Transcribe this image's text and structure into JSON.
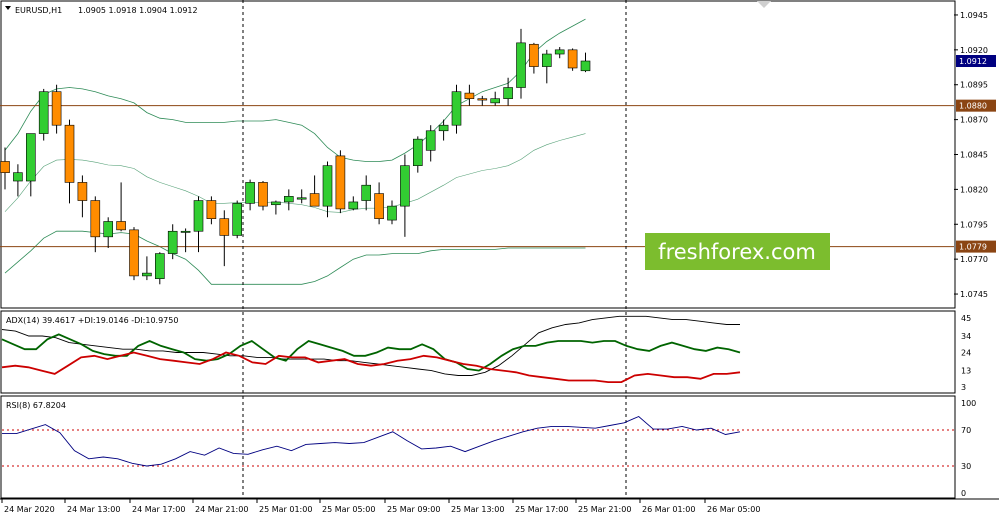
{
  "header": {
    "symbol": "EURUSD,H1",
    "ohlc": "1.0905 1.0918 1.0904 1.0912"
  },
  "watermark": "freshforex.com",
  "colors": {
    "bull": "#32cd32",
    "bear": "#ff8c00",
    "candle_outline": "#000000",
    "bands": "#2e8b57",
    "level_line": "#8b4513",
    "price_tag": "#000080",
    "adx": "#000000",
    "plus_di": "#006400",
    "minus_di": "#cc0000",
    "rsi": "#000080",
    "rsi_levels": "#cc0000",
    "watermark_bg": "#7cbd2e"
  },
  "chart_data": [
    {
      "type": "candlestick",
      "title": "EURUSD,H1",
      "ylim": [
        1.0735,
        1.0955
      ],
      "yticks": [
        "1.0945",
        "1.0920",
        "1.0895",
        "1.0870",
        "1.0845",
        "1.0820",
        "1.0795",
        "1.0770",
        "1.0745"
      ],
      "x_labels": [
        "24 Mar 2020",
        "24 Mar 13:00",
        "24 Mar 17:00",
        "24 Mar 21:00",
        "25 Mar 01:00",
        "25 Mar 05:00",
        "25 Mar 09:00",
        "25 Mar 13:00",
        "25 Mar 17:00",
        "25 Mar 21:00",
        "26 Mar 01:00",
        "26 Mar 05:00"
      ],
      "candles": [
        {
          "o": 1.084,
          "h": 1.085,
          "l": 1.082,
          "c": 1.0832
        },
        {
          "o": 1.0826,
          "h": 1.0838,
          "l": 1.0815,
          "c": 1.0832
        },
        {
          "o": 1.0826,
          "h": 1.086,
          "l": 1.0815,
          "c": 1.086
        },
        {
          "o": 1.086,
          "h": 1.0892,
          "l": 1.0855,
          "c": 1.089
        },
        {
          "o": 1.089,
          "h": 1.0895,
          "l": 1.086,
          "c": 1.0866
        },
        {
          "o": 1.0866,
          "h": 1.087,
          "l": 1.081,
          "c": 1.0825
        },
        {
          "o": 1.0825,
          "h": 1.083,
          "l": 1.08,
          "c": 1.0812
        },
        {
          "o": 1.0812,
          "h": 1.0815,
          "l": 1.0775,
          "c": 1.0786
        },
        {
          "o": 1.0786,
          "h": 1.08,
          "l": 1.0778,
          "c": 1.0797
        },
        {
          "o": 1.0797,
          "h": 1.0825,
          "l": 1.079,
          "c": 1.0791
        },
        {
          "o": 1.0791,
          "h": 1.0793,
          "l": 1.0755,
          "c": 1.0758
        },
        {
          "o": 1.0758,
          "h": 1.0772,
          "l": 1.0755,
          "c": 1.076
        },
        {
          "o": 1.0756,
          "h": 1.0775,
          "l": 1.0752,
          "c": 1.0774
        },
        {
          "o": 1.0774,
          "h": 1.0795,
          "l": 1.077,
          "c": 1.079
        },
        {
          "o": 1.079,
          "h": 1.0792,
          "l": 1.0775,
          "c": 1.079
        },
        {
          "o": 1.079,
          "h": 1.0815,
          "l": 1.0775,
          "c": 1.0812
        },
        {
          "o": 1.0812,
          "h": 1.0815,
          "l": 1.0795,
          "c": 1.0799
        },
        {
          "o": 1.0799,
          "h": 1.0805,
          "l": 1.0765,
          "c": 1.0787
        },
        {
          "o": 1.0787,
          "h": 1.0812,
          "l": 1.0785,
          "c": 1.081
        },
        {
          "o": 1.081,
          "h": 1.0827,
          "l": 1.0805,
          "c": 1.0825
        },
        {
          "o": 1.0825,
          "h": 1.0826,
          "l": 1.0805,
          "c": 1.0808
        },
        {
          "o": 1.0809,
          "h": 1.0812,
          "l": 1.0802,
          "c": 1.0811
        },
        {
          "o": 1.0811,
          "h": 1.082,
          "l": 1.0805,
          "c": 1.0815
        },
        {
          "o": 1.0813,
          "h": 1.082,
          "l": 1.081,
          "c": 1.0814
        },
        {
          "o": 1.0817,
          "h": 1.083,
          "l": 1.0808,
          "c": 1.0808
        },
        {
          "o": 1.0808,
          "h": 1.084,
          "l": 1.08,
          "c": 1.0837
        },
        {
          "o": 1.0844,
          "h": 1.0848,
          "l": 1.0803,
          "c": 1.0806
        },
        {
          "o": 1.0806,
          "h": 1.0815,
          "l": 1.0805,
          "c": 1.0811
        },
        {
          "o": 1.0812,
          "h": 1.083,
          "l": 1.0805,
          "c": 1.0823
        },
        {
          "o": 1.0817,
          "h": 1.0825,
          "l": 1.0795,
          "c": 1.0799
        },
        {
          "o": 1.0798,
          "h": 1.0812,
          "l": 1.0795,
          "c": 1.0808
        },
        {
          "o": 1.0808,
          "h": 1.0845,
          "l": 1.0786,
          "c": 1.0837
        },
        {
          "o": 1.0837,
          "h": 1.0858,
          "l": 1.0832,
          "c": 1.0856
        },
        {
          "o": 1.0848,
          "h": 1.0866,
          "l": 1.084,
          "c": 1.0862
        },
        {
          "o": 1.0862,
          "h": 1.087,
          "l": 1.0855,
          "c": 1.0866
        },
        {
          "o": 1.0866,
          "h": 1.0895,
          "l": 1.086,
          "c": 1.089
        },
        {
          "o": 1.0889,
          "h": 1.0895,
          "l": 1.088,
          "c": 1.0885
        },
        {
          "o": 1.0885,
          "h": 1.0887,
          "l": 1.088,
          "c": 1.0884
        },
        {
          "o": 1.0882,
          "h": 1.089,
          "l": 1.088,
          "c": 1.0885
        },
        {
          "o": 1.0885,
          "h": 1.09,
          "l": 1.088,
          "c": 1.0893
        },
        {
          "o": 1.0893,
          "h": 1.0935,
          "l": 1.0885,
          "c": 1.0925
        },
        {
          "o": 1.0924,
          "h": 1.0925,
          "l": 1.0903,
          "c": 1.0908
        },
        {
          "o": 1.0908,
          "h": 1.092,
          "l": 1.0896,
          "c": 1.0917
        },
        {
          "o": 1.0917,
          "h": 1.0922,
          "l": 1.0914,
          "c": 1.092
        },
        {
          "o": 1.092,
          "h": 1.0921,
          "l": 1.0905,
          "c": 1.0907
        },
        {
          "o": 1.0905,
          "h": 1.0918,
          "l": 1.0904,
          "c": 1.0912
        }
      ],
      "bands": {
        "upper": [
          1.0848,
          1.086,
          1.0876,
          1.0888,
          1.0892,
          1.0893,
          1.0892,
          1.089,
          1.0887,
          1.0885,
          1.0882,
          1.0875,
          1.0871,
          1.087,
          1.0868,
          1.0868,
          1.0868,
          1.0868,
          1.0869,
          1.0869,
          1.0869,
          1.087,
          1.0868,
          1.0866,
          1.086,
          1.085,
          1.0843,
          1.0841,
          1.084,
          1.084,
          1.0841,
          1.0846,
          1.0852,
          1.086,
          1.0869,
          1.088,
          1.0885,
          1.089,
          1.0893,
          1.0896,
          1.0905,
          1.0918,
          1.0926,
          1.0932,
          1.0937,
          1.0942
        ],
        "lower": [
          1.076,
          1.0768,
          1.0776,
          1.0785,
          1.079,
          1.079,
          1.079,
          1.0789,
          1.0788,
          1.0789,
          1.0788,
          1.0783,
          1.0779,
          1.0774,
          1.077,
          1.0762,
          1.0752,
          1.0752,
          1.0752,
          1.0752,
          1.0752,
          1.0752,
          1.0752,
          1.0752,
          1.0754,
          1.0758,
          1.0764,
          1.077,
          1.0773,
          1.0773,
          1.0774,
          1.0774,
          1.0774,
          1.0776,
          1.0777,
          1.0777,
          1.0777,
          1.0777,
          1.0777,
          1.0778,
          1.0778,
          1.0778,
          1.0778,
          1.0778,
          1.0778,
          1.0778
        ]
      },
      "levels": [
        {
          "value": 1.088,
          "label": "1.0880"
        },
        {
          "value": 1.0779,
          "label": "1.0779"
        }
      ],
      "current_price": {
        "value": 1.0912,
        "label": "1.0912"
      },
      "vertical_separators": [
        "24 Mar 21:00",
        "26 Mar 00:00"
      ]
    },
    {
      "type": "line",
      "title": "ADX(14) 39.4617 +DI:19.0146 -DI:10.9750",
      "ylim": [
        0,
        48
      ],
      "yticks": [
        "45",
        "34",
        "24",
        "13",
        "3"
      ],
      "series": [
        {
          "name": "ADX",
          "values": [
            38,
            37,
            34,
            34,
            33,
            30,
            29,
            28,
            27,
            26,
            26,
            25,
            25,
            24,
            24,
            24,
            23,
            22,
            22,
            21,
            21,
            20,
            20,
            20,
            20,
            19,
            19,
            18,
            17,
            16,
            15,
            14,
            13,
            11,
            10,
            10,
            12,
            16,
            22,
            29,
            36,
            39,
            41,
            42,
            44,
            45,
            46,
            46,
            46,
            45,
            44,
            44,
            43,
            42,
            41,
            41
          ]
        },
        {
          "name": "+DI",
          "values": [
            32,
            29,
            26,
            26,
            32,
            35,
            32,
            29,
            25,
            23,
            22,
            22,
            28,
            31,
            28,
            26,
            24,
            20,
            19,
            20,
            23,
            28,
            31,
            26,
            21,
            19,
            26,
            31,
            29,
            27,
            25,
            22,
            22,
            24,
            27,
            26,
            26,
            29,
            26,
            20,
            18,
            14,
            13,
            17,
            22,
            26,
            28,
            28,
            30,
            31,
            31,
            31,
            30,
            31,
            31,
            28,
            26,
            25,
            28,
            30,
            28,
            26,
            25,
            27,
            26,
            24
          ]
        },
        {
          "name": "-DI",
          "values": [
            15,
            16,
            15,
            13,
            11,
            16,
            21,
            22,
            20,
            22,
            24,
            22,
            20,
            19,
            18,
            17,
            20,
            24,
            22,
            18,
            17,
            22,
            21,
            21,
            18,
            19,
            20,
            17,
            16,
            17,
            19,
            20,
            22,
            21,
            19,
            17,
            16,
            14,
            13,
            12,
            10,
            9,
            8,
            7,
            7,
            7,
            6,
            6,
            10,
            11,
            10,
            9,
            9,
            8,
            11,
            11,
            12
          ]
        }
      ]
    },
    {
      "type": "line",
      "title": "RSI(8) 67.8204",
      "ylim": [
        0,
        100
      ],
      "yticks": [
        "100",
        "70",
        "30",
        "0"
      ],
      "levels": [
        70,
        30
      ],
      "series": [
        {
          "name": "RSI",
          "values": [
            66,
            66,
            71,
            76,
            67,
            47,
            38,
            40,
            38,
            33,
            30,
            32,
            38,
            46,
            42,
            50,
            44,
            43,
            48,
            52,
            47,
            54,
            55,
            56,
            55,
            56,
            62,
            68,
            58,
            49,
            50,
            52,
            46,
            52,
            58,
            63,
            68,
            72,
            74,
            74,
            73,
            72,
            75,
            78,
            85,
            71,
            71,
            74,
            70,
            72,
            65,
            68
          ]
        }
      ]
    }
  ]
}
